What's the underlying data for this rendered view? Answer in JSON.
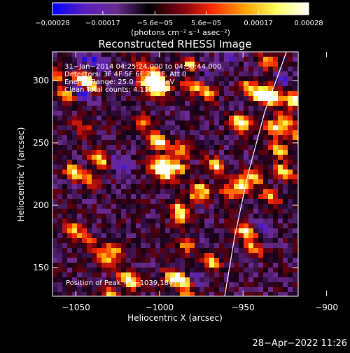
{
  "chart_data": {
    "type": "heatmap",
    "title": "Reconstructed RHESSI Image",
    "xlabel": "Heliocentric X (arcsec)",
    "ylabel": "Heliocentric Y (arcsec)",
    "xlim": [
      -1064,
      -917
    ],
    "ylim": [
      127,
      323
    ],
    "x_ticks": [
      -1050,
      -1000,
      -950,
      -900
    ],
    "x_tick_labels": [
      "−1050",
      "−1000",
      "−950",
      "−900"
    ],
    "y_ticks": [
      150,
      200,
      250,
      300
    ],
    "y_tick_labels": [
      "150",
      "200",
      "250",
      "300"
    ],
    "colorbar": {
      "range": [
        -0.00028,
        0.00028
      ],
      "ticks": [
        -0.00028,
        -0.00017,
        -5.6e-05,
        5.6e-05,
        0.00017,
        0.00028
      ],
      "tick_labels": [
        "−0.00028",
        "−0.00017",
        "−5.6e−05",
        "5.6e−05",
        "0.00017",
        "0.00028"
      ],
      "unit_label": "(photons cm⁻² s⁻¹ asec⁻²)",
      "colors": [
        "#0000ff",
        "#5a1fbf",
        "#6a2a90",
        "#000000",
        "#7a0010",
        "#ff2a00",
        "#ffa200",
        "#ffff60",
        "#ffffff"
      ]
    },
    "annotations": [
      "31−Jan−2014 04:25:24.000 to 04:30:44.000",
      "Detectors: 3F 4F 5F 6F 7F 8F, Att 0",
      "Energy Range: 25.0 − 50.0 keV",
      "Clean    Total counts: 4.11E+03"
    ],
    "peak_label": "Position of Peak = [−1039,184]",
    "limb_curve": [
      [
        -961,
        127
      ],
      [
        -955,
        175
      ],
      [
        -947,
        225
      ],
      [
        -937,
        275
      ],
      [
        -924,
        323
      ]
    ],
    "timestamp": "28−Apr−2022 11:26"
  }
}
